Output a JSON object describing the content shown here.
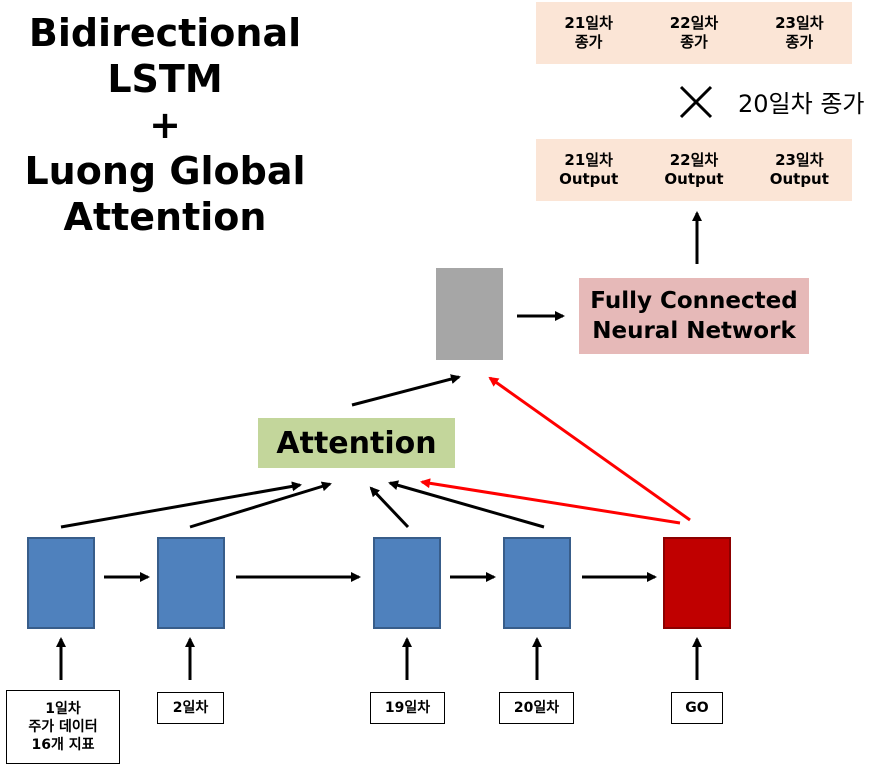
{
  "title": {
    "line1": "Bidirectional",
    "line2": "LSTM",
    "line3": "+",
    "line4": "Luong Global",
    "line5": "Attention"
  },
  "top_row": [
    {
      "day": "21일차",
      "label": "종가"
    },
    {
      "day": "22일차",
      "label": "종가"
    },
    {
      "day": "23일차",
      "label": "종가"
    }
  ],
  "multiply_label": "20일차 종가",
  "output_row": [
    {
      "day": "21일차",
      "label": "Output"
    },
    {
      "day": "22일차",
      "label": "Output"
    },
    {
      "day": "23일차",
      "label": "Output"
    }
  ],
  "fc": {
    "line1": "Fully Connected",
    "line2": "Neural Network"
  },
  "attention": "Attention",
  "inputs": {
    "day1": [
      "1일차",
      "주가 데이터",
      "16개 지표"
    ],
    "day2": "2일차",
    "day19": "19일차",
    "day20": "20일차",
    "go": "GO"
  },
  "colors": {
    "lstm_cell": "#4f81bd",
    "decoder_cell": "#c00000",
    "attention_box": "#c3d69b",
    "fc_box": "#e6b9b8",
    "context_box": "#a6a6a6",
    "output_box": "#fbe5d6",
    "red_arrow": "#ff0000"
  }
}
